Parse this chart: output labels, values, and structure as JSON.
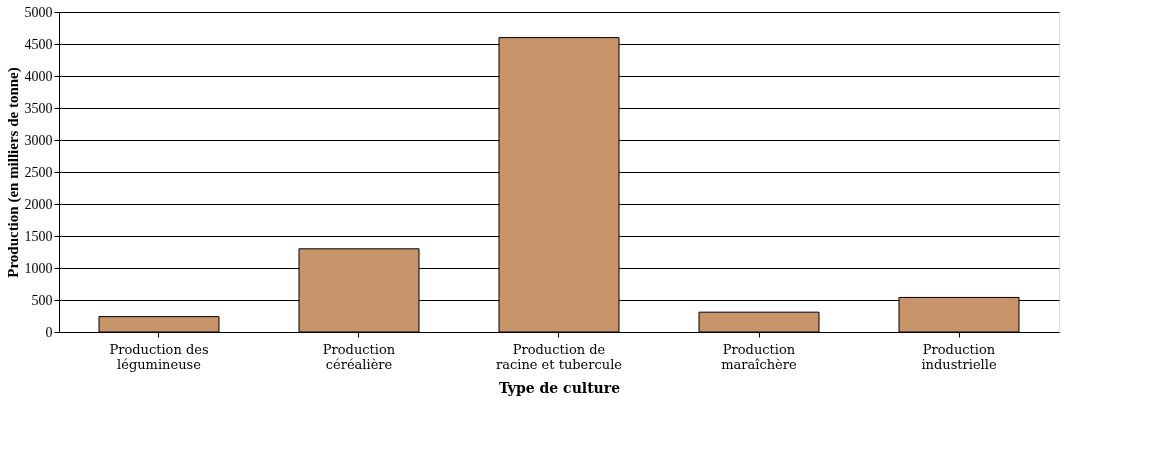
{
  "chart_data": {
    "type": "bar",
    "xlabel": "Type de culture",
    "ylabel": "Production (en milliers de tonne)",
    "categories": [
      "Production des\nlégumineuse",
      "Production\ncéréalière",
      "Production de\nracine et tubercule",
      "Production\nmaraîchère",
      "Production\nindustrielle"
    ],
    "values": [
      240,
      1300,
      4600,
      310,
      540
    ],
    "color": "#c8956a",
    "ylim": [
      0,
      5000
    ],
    "yticks": [
      0,
      500,
      1000,
      1500,
      2000,
      2500,
      3000,
      3500,
      4000,
      4500,
      5000
    ],
    "grid": "y"
  }
}
